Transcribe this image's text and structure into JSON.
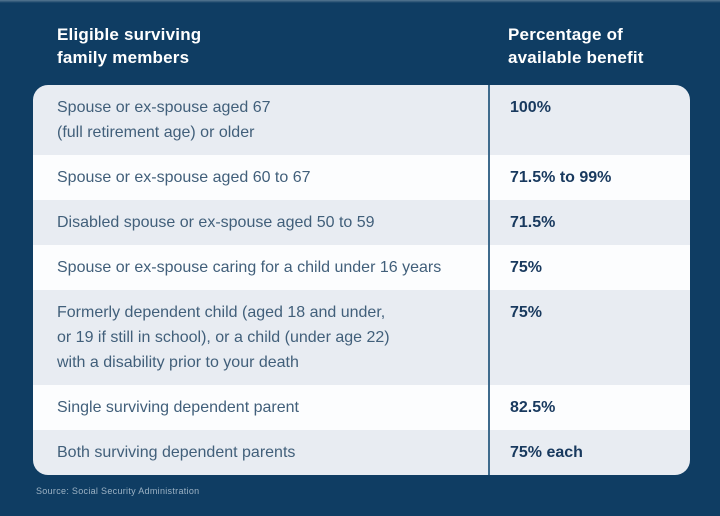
{
  "colors": {
    "background": "#0f3d63",
    "header_text": "#ffffff",
    "row_shade": "#e8ecf2",
    "row_plain": "#fcfdfe",
    "member_text": "#415f7a",
    "benefit_text": "#18395e",
    "divider": "#3f6b8d",
    "source_text": "#9cb2c4"
  },
  "header": {
    "left": "Eligible surviving\nfamily members",
    "right": "Percentage of\navailable benefit"
  },
  "table": {
    "rows": [
      {
        "member": "Spouse or ex-spouse aged 67\n(full retirement age) or older",
        "benefit": "100%"
      },
      {
        "member": "Spouse or ex-spouse aged 60 to 67",
        "benefit": "71.5% to 99%"
      },
      {
        "member": "Disabled spouse or ex-spouse aged 50 to 59",
        "benefit": "71.5%"
      },
      {
        "member": "Spouse or ex-spouse caring for a child under 16 years",
        "benefit": "75%"
      },
      {
        "member": "Formerly dependent child (aged 18 and under,\nor 19 if still in school), or a child (under age 22)\nwith a disability prior to your death",
        "benefit": "75%"
      },
      {
        "member": "Single surviving dependent parent",
        "benefit": "82.5%"
      },
      {
        "member": "Both surviving dependent parents",
        "benefit": "75% each"
      }
    ]
  },
  "source": "Source: Social Security Administration",
  "chart_data": {
    "type": "table",
    "title": "",
    "columns": [
      "Eligible surviving family members",
      "Percentage of available benefit"
    ],
    "rows": [
      [
        "Spouse or ex-spouse aged 67 (full retirement age) or older",
        "100%"
      ],
      [
        "Spouse or ex-spouse aged 60 to 67",
        "71.5% to 99%"
      ],
      [
        "Disabled spouse or ex-spouse aged 50 to 59",
        "71.5%"
      ],
      [
        "Spouse or ex-spouse caring for a child under 16 years",
        "75%"
      ],
      [
        "Formerly dependent child (aged 18 and under, or 19 if still in school), or a child (under age 22) with a disability prior to your death",
        "75%"
      ],
      [
        "Single surviving dependent parent",
        "82.5%"
      ],
      [
        "Both surviving dependent parents",
        "75% each"
      ]
    ],
    "source": "Source: Social Security Administration",
    "layout": {
      "striped": true,
      "divider_between_columns": true,
      "background": "dark-navy"
    }
  }
}
